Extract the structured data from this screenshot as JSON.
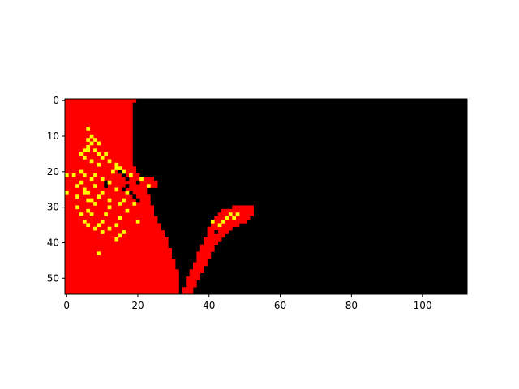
{
  "chart_data": {
    "type": "heatmap",
    "title": "",
    "xlabel": "",
    "ylabel": "",
    "grid": false,
    "legend": "none",
    "xlim": [
      -0.5,
      112.5
    ],
    "ylim": [
      54.5,
      -0.5
    ],
    "x_ticks": [
      0,
      20,
      40,
      60,
      80,
      100
    ],
    "y_ticks": [
      0,
      10,
      20,
      30,
      40,
      50
    ],
    "x_tick_labels": [
      "0",
      "20",
      "40",
      "60",
      "80",
      "100"
    ],
    "y_tick_labels": [
      "0",
      "10",
      "20",
      "30",
      "40",
      "50"
    ],
    "palette": {
      "0": "#000000",
      "1": "#ff0000",
      "2": "#ffff00"
    },
    "legend_meaning": {
      "0": "black",
      "1": "red",
      "2": "yellow"
    },
    "red_region": {
      "left_mass_right_edge_by_row": [
        [
          0,
          19
        ],
        [
          1,
          18
        ],
        [
          5,
          18
        ],
        [
          10,
          18
        ],
        [
          14,
          18
        ],
        [
          18,
          18
        ],
        [
          20,
          19
        ],
        [
          22,
          21
        ],
        [
          25,
          22
        ],
        [
          28,
          23
        ],
        [
          31,
          24
        ],
        [
          34,
          25
        ],
        [
          37,
          27
        ],
        [
          40,
          28
        ],
        [
          43,
          29
        ],
        [
          46,
          30
        ],
        [
          49,
          31
        ],
        [
          52,
          31
        ],
        [
          54,
          31
        ]
      ],
      "plume_segments_by_row": [
        [
          30,
          47,
          52
        ],
        [
          31,
          44,
          52
        ],
        [
          32,
          43,
          52
        ],
        [
          33,
          42,
          51
        ],
        [
          34,
          42,
          50
        ],
        [
          35,
          41,
          48
        ],
        [
          36,
          40,
          46
        ],
        [
          37,
          40,
          45
        ],
        [
          38,
          40,
          44
        ],
        [
          39,
          39,
          43
        ],
        [
          40,
          39,
          42
        ],
        [
          41,
          38,
          41
        ],
        [
          42,
          38,
          41
        ],
        [
          43,
          37,
          40
        ],
        [
          44,
          37,
          40
        ],
        [
          45,
          37,
          39
        ],
        [
          46,
          36,
          39
        ],
        [
          47,
          36,
          38
        ],
        [
          48,
          35,
          38
        ],
        [
          49,
          35,
          37
        ],
        [
          50,
          34,
          37
        ],
        [
          51,
          34,
          36
        ],
        [
          52,
          34,
          36
        ],
        [
          53,
          33,
          35
        ],
        [
          54,
          33,
          35
        ]
      ],
      "blob_segments_by_row": [
        [
          22,
          20,
          24
        ],
        [
          23,
          20,
          25
        ],
        [
          24,
          21,
          25
        ]
      ]
    },
    "yellow_points": [
      [
        8,
        6
      ],
      [
        10,
        7
      ],
      [
        11,
        6
      ],
      [
        11,
        8
      ],
      [
        12,
        7
      ],
      [
        12,
        9
      ],
      [
        13,
        6
      ],
      [
        14,
        5
      ],
      [
        14,
        6
      ],
      [
        14,
        8
      ],
      [
        15,
        4
      ],
      [
        15,
        9
      ],
      [
        15,
        11
      ],
      [
        16,
        5
      ],
      [
        16,
        10
      ],
      [
        17,
        7
      ],
      [
        17,
        12
      ],
      [
        18,
        9
      ],
      [
        18,
        14
      ],
      [
        19,
        14
      ],
      [
        19,
        15
      ],
      [
        20,
        4
      ],
      [
        20,
        13
      ],
      [
        20,
        16
      ],
      [
        21,
        0
      ],
      [
        21,
        2
      ],
      [
        21,
        5
      ],
      [
        21,
        8
      ],
      [
        21,
        18
      ],
      [
        22,
        7
      ],
      [
        22,
        10
      ],
      [
        22,
        21
      ],
      [
        23,
        4
      ],
      [
        23,
        12
      ],
      [
        24,
        3
      ],
      [
        24,
        8
      ],
      [
        24,
        23
      ],
      [
        25,
        5
      ],
      [
        25,
        14
      ],
      [
        26,
        0
      ],
      [
        26,
        5
      ],
      [
        26,
        6
      ],
      [
        26,
        10
      ],
      [
        26,
        17
      ],
      [
        27,
        3
      ],
      [
        27,
        9
      ],
      [
        28,
        6
      ],
      [
        28,
        7
      ],
      [
        28,
        12
      ],
      [
        28,
        16
      ],
      [
        29,
        8
      ],
      [
        29,
        15
      ],
      [
        29,
        19
      ],
      [
        30,
        3
      ],
      [
        30,
        12
      ],
      [
        31,
        6
      ],
      [
        31,
        17
      ],
      [
        32,
        4
      ],
      [
        32,
        7
      ],
      [
        32,
        11
      ],
      [
        32,
        46
      ],
      [
        32,
        48
      ],
      [
        33,
        15
      ],
      [
        33,
        45
      ],
      [
        33,
        47
      ],
      [
        34,
        5
      ],
      [
        34,
        10
      ],
      [
        34,
        20
      ],
      [
        34,
        41
      ],
      [
        34,
        44
      ],
      [
        35,
        6
      ],
      [
        35,
        9
      ],
      [
        35,
        14
      ],
      [
        35,
        43
      ],
      [
        36,
        8
      ],
      [
        36,
        12
      ],
      [
        37,
        10
      ],
      [
        37,
        16
      ],
      [
        38,
        15
      ],
      [
        39,
        14
      ],
      [
        43,
        9
      ]
    ],
    "black_points": [
      [
        20,
        15
      ],
      [
        21,
        16
      ],
      [
        22,
        17
      ],
      [
        23,
        11
      ],
      [
        23,
        20
      ],
      [
        24,
        11
      ],
      [
        24,
        17
      ],
      [
        25,
        16
      ],
      [
        26,
        18
      ],
      [
        27,
        19
      ],
      [
        28,
        20
      ],
      [
        33,
        33
      ],
      [
        37,
        42
      ]
    ]
  }
}
